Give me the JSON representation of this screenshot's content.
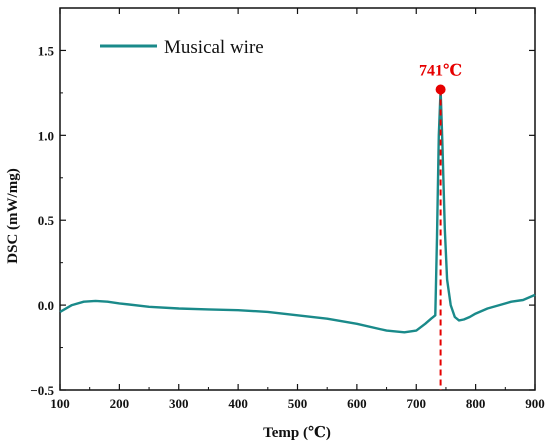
{
  "chart_data": {
    "type": "line",
    "xlabel": "Temp (℃)",
    "ylabel": "DSC (mW/mg)",
    "xlim": [
      100,
      900
    ],
    "ylim": [
      -0.5,
      1.75
    ],
    "xticks": [
      100,
      200,
      300,
      400,
      500,
      600,
      700,
      800,
      900
    ],
    "yticks": [
      -0.5,
      0.0,
      0.5,
      1.0,
      1.5
    ],
    "ytick_labels": [
      "−0.5",
      "0.0",
      "0.5",
      "1.0",
      "1.5"
    ],
    "legend_position": "top-left",
    "grid": false,
    "series": [
      {
        "name": "Musical wire",
        "color": "#1a8a8a",
        "x": [
          100,
          120,
          140,
          160,
          180,
          200,
          250,
          300,
          350,
          400,
          450,
          500,
          550,
          600,
          650,
          680,
          700,
          715,
          725,
          732,
          735,
          738,
          741,
          744,
          748,
          752,
          758,
          765,
          772,
          780,
          790,
          800,
          820,
          840,
          860,
          880,
          900
        ],
        "y": [
          -0.04,
          0.0,
          0.02,
          0.025,
          0.02,
          0.01,
          -0.01,
          -0.02,
          -0.025,
          -0.03,
          -0.04,
          -0.06,
          -0.08,
          -0.11,
          -0.15,
          -0.16,
          -0.15,
          -0.11,
          -0.08,
          -0.06,
          0.4,
          1.0,
          1.27,
          0.95,
          0.45,
          0.15,
          0.0,
          -0.07,
          -0.09,
          -0.085,
          -0.07,
          -0.05,
          -0.02,
          0.0,
          0.02,
          0.03,
          0.06
        ]
      }
    ],
    "annotations": [
      {
        "text": "741℃",
        "x": 741,
        "y": 1.27,
        "color": "#e60000",
        "style": "dashed vertical line to x-axis with marker"
      }
    ]
  }
}
